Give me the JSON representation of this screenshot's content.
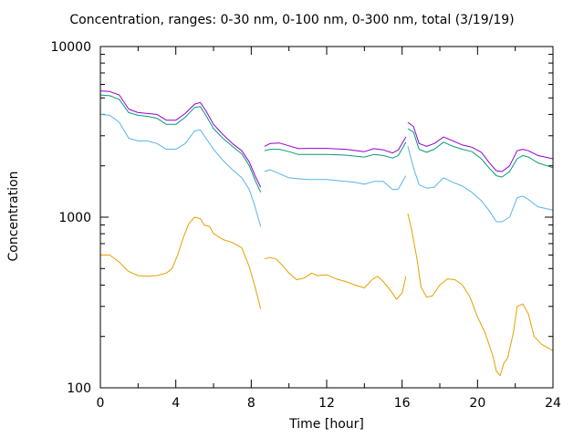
{
  "chart_data": {
    "type": "line",
    "title": "Concentration, ranges: 0-30 nm, 0-100 nm, 0-300 nm, total (3/19/19)",
    "xlabel": "Time [hour]",
    "ylabel": "Concentration",
    "xlim": [
      0,
      24
    ],
    "ylim": [
      100,
      10000
    ],
    "yscale": "log",
    "xticks": [
      0,
      4,
      8,
      12,
      16,
      20,
      24
    ],
    "yticks": [
      100,
      1000,
      10000
    ],
    "grid": false,
    "legend": "none",
    "series": [
      {
        "color": "#e69f00",
        "segments": [
          [
            [
              0,
              600
            ],
            [
              0.5,
              600
            ],
            [
              1,
              545
            ],
            [
              1.5,
              480
            ],
            [
              2,
              455
            ],
            [
              2.5,
              450
            ],
            [
              3,
              455
            ],
            [
              3.5,
              470
            ],
            [
              3.8,
              500
            ],
            [
              4.1,
              600
            ],
            [
              4.4,
              760
            ],
            [
              4.7,
              920
            ],
            [
              5,
              1000
            ],
            [
              5.3,
              980
            ],
            [
              5.5,
              900
            ],
            [
              5.8,
              880
            ],
            [
              6,
              800
            ],
            [
              6.5,
              740
            ],
            [
              7,
              710
            ],
            [
              7.5,
              660
            ],
            [
              7.9,
              510
            ],
            [
              8.2,
              390
            ],
            [
              8.5,
              290
            ]
          ],
          [
            [
              8.7,
              570
            ],
            [
              9,
              580
            ],
            [
              9.3,
              570
            ],
            [
              9.6,
              530
            ],
            [
              10,
              470
            ],
            [
              10.4,
              430
            ],
            [
              10.8,
              440
            ],
            [
              11.2,
              470
            ],
            [
              11.5,
              455
            ],
            [
              12,
              460
            ],
            [
              12.5,
              435
            ],
            [
              13,
              420
            ],
            [
              13.5,
              400
            ],
            [
              14,
              385
            ],
            [
              14.4,
              430
            ],
            [
              14.7,
              450
            ],
            [
              15,
              420
            ],
            [
              15.4,
              370
            ],
            [
              15.7,
              330
            ],
            [
              16,
              360
            ],
            [
              16.2,
              450
            ]
          ],
          [
            [
              16.3,
              1050
            ],
            [
              16.5,
              850
            ],
            [
              16.8,
              560
            ],
            [
              17,
              390
            ],
            [
              17.3,
              340
            ],
            [
              17.6,
              345
            ],
            [
              18,
              400
            ],
            [
              18.4,
              435
            ],
            [
              18.8,
              430
            ],
            [
              19.2,
              400
            ],
            [
              19.6,
              340
            ],
            [
              20,
              260
            ],
            [
              20.4,
              210
            ],
            [
              20.8,
              155
            ],
            [
              21,
              125
            ],
            [
              21.2,
              118
            ],
            [
              21.4,
              140
            ],
            [
              21.6,
              150
            ],
            [
              21.9,
              210
            ],
            [
              22.1,
              300
            ],
            [
              22.4,
              310
            ],
            [
              22.7,
              270
            ],
            [
              23,
              200
            ],
            [
              23.4,
              180
            ],
            [
              24,
              165
            ]
          ]
        ]
      },
      {
        "color": "#56b4e9",
        "segments": [
          [
            [
              0,
              4000
            ],
            [
              0.5,
              3950
            ],
            [
              1,
              3600
            ],
            [
              1.5,
              2900
            ],
            [
              2,
              2800
            ],
            [
              2.5,
              2800
            ],
            [
              3,
              2700
            ],
            [
              3.5,
              2500
            ],
            [
              4,
              2500
            ],
            [
              4.5,
              2700
            ],
            [
              5,
              3200
            ],
            [
              5.3,
              3250
            ],
            [
              5.6,
              2900
            ],
            [
              6,
              2500
            ],
            [
              6.5,
              2150
            ],
            [
              7,
              1900
            ],
            [
              7.5,
              1700
            ],
            [
              7.9,
              1450
            ],
            [
              8.2,
              1150
            ],
            [
              8.5,
              880
            ]
          ],
          [
            [
              8.7,
              1850
            ],
            [
              9,
              1900
            ],
            [
              9.5,
              1800
            ],
            [
              10,
              1700
            ],
            [
              11,
              1660
            ],
            [
              12,
              1660
            ],
            [
              13,
              1620
            ],
            [
              13.5,
              1600
            ],
            [
              14,
              1560
            ],
            [
              14.5,
              1620
            ],
            [
              15,
              1620
            ],
            [
              15.5,
              1450
            ],
            [
              15.8,
              1460
            ],
            [
              16.2,
              1750
            ]
          ],
          [
            [
              16.3,
              2600
            ],
            [
              16.6,
              1950
            ],
            [
              16.9,
              1550
            ],
            [
              17.3,
              1480
            ],
            [
              17.7,
              1500
            ],
            [
              18.2,
              1700
            ],
            [
              18.7,
              1600
            ],
            [
              19.2,
              1520
            ],
            [
              19.7,
              1400
            ],
            [
              20.2,
              1250
            ],
            [
              20.6,
              1100
            ],
            [
              21,
              940
            ],
            [
              21.3,
              940
            ],
            [
              21.7,
              1000
            ],
            [
              22.1,
              1300
            ],
            [
              22.4,
              1330
            ],
            [
              22.7,
              1270
            ],
            [
              23.2,
              1150
            ],
            [
              24,
              1100
            ]
          ]
        ]
      },
      {
        "color": "#009e73",
        "segments": [
          [
            [
              0,
              5200
            ],
            [
              0.5,
              5150
            ],
            [
              1,
              4900
            ],
            [
              1.5,
              4100
            ],
            [
              2,
              3950
            ],
            [
              2.5,
              3900
            ],
            [
              3,
              3800
            ],
            [
              3.5,
              3500
            ],
            [
              4,
              3500
            ],
            [
              4.5,
              3850
            ],
            [
              5,
              4400
            ],
            [
              5.3,
              4450
            ],
            [
              5.6,
              3950
            ],
            [
              6,
              3300
            ],
            [
              6.5,
              2900
            ],
            [
              7,
              2600
            ],
            [
              7.5,
              2350
            ],
            [
              7.9,
              2000
            ],
            [
              8.2,
              1650
            ],
            [
              8.5,
              1400
            ]
          ],
          [
            [
              8.7,
              2450
            ],
            [
              9,
              2500
            ],
            [
              9.5,
              2500
            ],
            [
              10,
              2420
            ],
            [
              10.5,
              2330
            ],
            [
              11,
              2330
            ],
            [
              12,
              2330
            ],
            [
              13,
              2310
            ],
            [
              14,
              2250
            ],
            [
              14.5,
              2330
            ],
            [
              15,
              2300
            ],
            [
              15.5,
              2220
            ],
            [
              15.8,
              2300
            ],
            [
              16.2,
              2750
            ]
          ],
          [
            [
              16.3,
              3300
            ],
            [
              16.6,
              3150
            ],
            [
              16.9,
              2500
            ],
            [
              17.3,
              2400
            ],
            [
              17.7,
              2500
            ],
            [
              18.2,
              2750
            ],
            [
              18.7,
              2600
            ],
            [
              19.2,
              2500
            ],
            [
              19.7,
              2420
            ],
            [
              20.2,
              2200
            ],
            [
              20.6,
              1950
            ],
            [
              21,
              1750
            ],
            [
              21.3,
              1720
            ],
            [
              21.7,
              1850
            ],
            [
              22.1,
              2200
            ],
            [
              22.4,
              2300
            ],
            [
              22.7,
              2250
            ],
            [
              23.2,
              2080
            ],
            [
              24,
              1950
            ]
          ]
        ]
      },
      {
        "color": "#9400d3",
        "segments": [
          [
            [
              0,
              5500
            ],
            [
              0.5,
              5450
            ],
            [
              1,
              5200
            ],
            [
              1.5,
              4300
            ],
            [
              2,
              4100
            ],
            [
              2.5,
              4050
            ],
            [
              3,
              4000
            ],
            [
              3.5,
              3700
            ],
            [
              4,
              3700
            ],
            [
              4.5,
              4050
            ],
            [
              5,
              4600
            ],
            [
              5.3,
              4700
            ],
            [
              5.6,
              4200
            ],
            [
              6,
              3500
            ],
            [
              6.5,
              3050
            ],
            [
              7,
              2700
            ],
            [
              7.5,
              2450
            ],
            [
              7.9,
              2100
            ],
            [
              8.2,
              1750
            ],
            [
              8.5,
              1500
            ]
          ],
          [
            [
              8.7,
              2600
            ],
            [
              9,
              2700
            ],
            [
              9.5,
              2720
            ],
            [
              10,
              2620
            ],
            [
              10.5,
              2520
            ],
            [
              11,
              2530
            ],
            [
              12,
              2530
            ],
            [
              13,
              2500
            ],
            [
              14,
              2420
            ],
            [
              14.5,
              2520
            ],
            [
              15,
              2480
            ],
            [
              15.5,
              2380
            ],
            [
              15.8,
              2480
            ],
            [
              16.2,
              2950
            ]
          ],
          [
            [
              16.3,
              3600
            ],
            [
              16.6,
              3400
            ],
            [
              16.9,
              2700
            ],
            [
              17.3,
              2600
            ],
            [
              17.7,
              2700
            ],
            [
              18.2,
              2950
            ],
            [
              18.7,
              2800
            ],
            [
              19.2,
              2650
            ],
            [
              19.7,
              2570
            ],
            [
              20.2,
              2400
            ],
            [
              20.6,
              2100
            ],
            [
              21,
              1870
            ],
            [
              21.3,
              1850
            ],
            [
              21.7,
              2000
            ],
            [
              22.1,
              2450
            ],
            [
              22.4,
              2500
            ],
            [
              22.7,
              2450
            ],
            [
              23.2,
              2300
            ],
            [
              24,
              2200
            ]
          ]
        ]
      }
    ]
  }
}
